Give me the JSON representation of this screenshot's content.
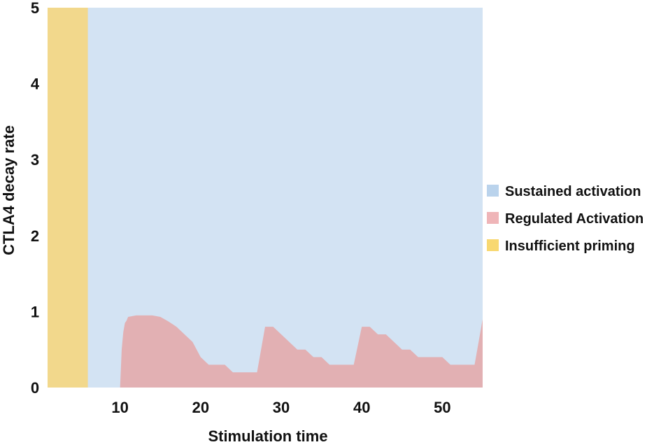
{
  "chart_data": {
    "type": "area",
    "title": "",
    "xlabel": "Stimulation time",
    "ylabel": "CTLA4 decay rate",
    "xlim": [
      1,
      55
    ],
    "ylim": [
      0,
      5
    ],
    "xticks": [
      10,
      20,
      30,
      40,
      50
    ],
    "yticks": [
      0,
      1,
      2,
      3,
      4,
      5
    ],
    "grid": false,
    "legend_position": "right",
    "regions": [
      {
        "name": "Sustained activation",
        "color": "#d3e3f3",
        "kind": "background"
      },
      {
        "name": "Insufficient priming",
        "color": "#f2d88c",
        "kind": "x-band",
        "x_range": [
          1,
          6
        ]
      }
    ],
    "series": [
      {
        "name": "Regulated Activation",
        "color": "#e2b0b3",
        "x": [
          1,
          10,
          10.2,
          10.4,
          10.6,
          10.8,
          11,
          12,
          13,
          14,
          15,
          16,
          17,
          18,
          19,
          20,
          21,
          22,
          23,
          24,
          25,
          26,
          27,
          28,
          29,
          30,
          31,
          32,
          33,
          34,
          35,
          36,
          37,
          38,
          39,
          40,
          41,
          42,
          43,
          44,
          45,
          46,
          47,
          48,
          49,
          50,
          51,
          52,
          53,
          54,
          55
        ],
        "values": [
          0,
          0,
          0.5,
          0.73,
          0.85,
          0.88,
          0.93,
          0.95,
          0.95,
          0.95,
          0.93,
          0.87,
          0.8,
          0.7,
          0.6,
          0.4,
          0.3,
          0.3,
          0.3,
          0.2,
          0.2,
          0.2,
          0.2,
          0.8,
          0.8,
          0.7,
          0.6,
          0.5,
          0.5,
          0.4,
          0.4,
          0.3,
          0.3,
          0.3,
          0.3,
          0.8,
          0.8,
          0.7,
          0.7,
          0.6,
          0.5,
          0.5,
          0.4,
          0.4,
          0.4,
          0.4,
          0.3,
          0.3,
          0.3,
          0.3,
          0.9
        ]
      }
    ],
    "legend": [
      {
        "label": "Sustained activation",
        "color": "#bad3ec"
      },
      {
        "label": "Regulated Activation",
        "color": "#efb5b8"
      },
      {
        "label": "Insufficient priming",
        "color": "#f8d871"
      }
    ]
  }
}
